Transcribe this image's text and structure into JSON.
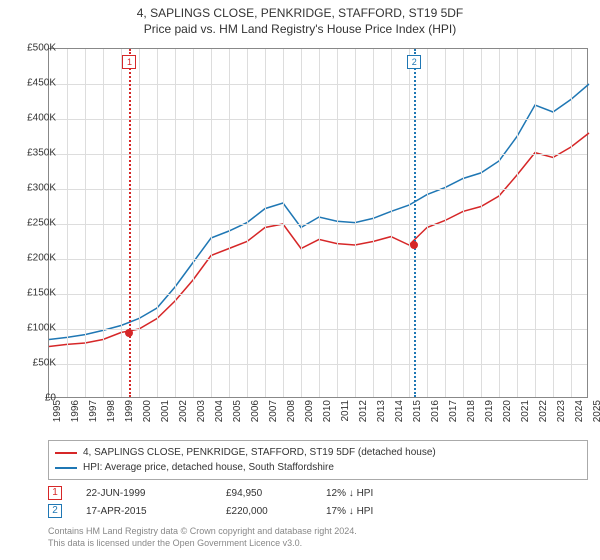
{
  "title": "4, SAPLINGS CLOSE, PENKRIDGE, STAFFORD, ST19 5DF",
  "subtitle": "Price paid vs. HM Land Registry's House Price Index (HPI)",
  "chart": {
    "type": "line",
    "x_years": [
      1995,
      1996,
      1997,
      1998,
      1999,
      2000,
      2001,
      2002,
      2003,
      2004,
      2005,
      2006,
      2007,
      2008,
      2009,
      2010,
      2011,
      2012,
      2013,
      2014,
      2015,
      2016,
      2017,
      2018,
      2019,
      2020,
      2021,
      2022,
      2023,
      2024,
      2025
    ],
    "ylim": [
      0,
      500000
    ],
    "ytick_step": 50000,
    "y_prefix": "£",
    "grid_color": "#dddddd",
    "border_color": "#888888",
    "background_color": "#ffffff",
    "series": [
      {
        "name": "property",
        "label": "4, SAPLINGS CLOSE, PENKRIDGE, STAFFORD, ST19 5DF (detached house)",
        "color": "#d62728",
        "line_width": 1.5,
        "values": [
          75000,
          78000,
          80000,
          85000,
          94950,
          100000,
          115000,
          140000,
          170000,
          205000,
          215000,
          225000,
          245000,
          250000,
          215000,
          228000,
          222000,
          220000,
          225000,
          232000,
          220000,
          245000,
          255000,
          268000,
          275000,
          290000,
          320000,
          352000,
          345000,
          360000,
          380000
        ]
      },
      {
        "name": "hpi",
        "label": "HPI: Average price, detached house, South Staffordshire",
        "color": "#1f77b4",
        "line_width": 1.5,
        "values": [
          85000,
          88000,
          92000,
          98000,
          105000,
          115000,
          130000,
          160000,
          195000,
          230000,
          240000,
          252000,
          272000,
          280000,
          245000,
          260000,
          254000,
          252000,
          258000,
          268000,
          277000,
          292000,
          302000,
          315000,
          323000,
          340000,
          375000,
          420000,
          410000,
          428000,
          450000
        ]
      }
    ],
    "reference_lines": [
      {
        "id": "1",
        "year_frac": 1999.47,
        "color": "#d62728"
      },
      {
        "id": "2",
        "year_frac": 2015.29,
        "color": "#1f77b4"
      }
    ],
    "sale_points": [
      {
        "year_frac": 1999.47,
        "value": 94950,
        "color": "#d62728"
      },
      {
        "year_frac": 2015.29,
        "value": 220000,
        "color": "#d62728"
      }
    ]
  },
  "sales": [
    {
      "id": "1",
      "date": "22-JUN-1999",
      "price": "£94,950",
      "diff": "12% ↓ HPI",
      "border_color": "#d62728"
    },
    {
      "id": "2",
      "date": "17-APR-2015",
      "price": "£220,000",
      "diff": "17% ↓ HPI",
      "border_color": "#1f77b4"
    }
  ],
  "footer": {
    "line1": "Contains HM Land Registry data © Crown copyright and database right 2024.",
    "line2": "This data is licensed under the Open Government Licence v3.0."
  },
  "fmt": {
    "kfmt": "K"
  }
}
